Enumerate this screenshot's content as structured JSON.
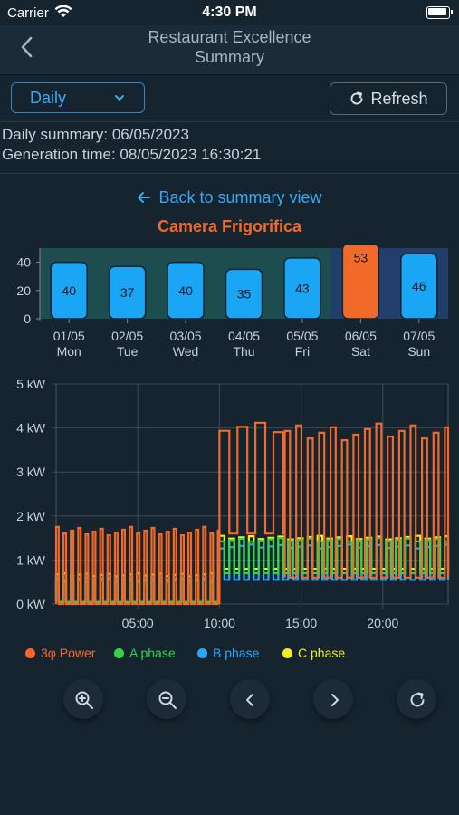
{
  "status_bar": {
    "carrier": "Carrier",
    "time": "4:30 PM"
  },
  "navbar": {
    "title_line1": "Restaurant Excellence",
    "title_line2": "Summary",
    "back_icon": "chevron-left-icon"
  },
  "toolbar": {
    "period_select": "Daily",
    "refresh_label": "Refresh",
    "refresh_icon": "refresh-icon"
  },
  "summary": {
    "daily_summary": "Daily summary: 06/05/2023",
    "generation_time": "Generation time: 08/05/2023 16:30:21"
  },
  "back_link": "Back to summary view",
  "device_name": "Camera Frigorifica",
  "colors": {
    "accent": "#3aa8f0",
    "device": "#f26a2a",
    "power": "#f26a2a",
    "a_phase": "#34d34a",
    "b_phase": "#29a9f3",
    "c_phase": "#f0f020",
    "weekday_bg": "#1e4d4f",
    "weekend_bg": "#213f6a"
  },
  "chart_data": [
    {
      "type": "bar",
      "categories": [
        "01/05 Mon",
        "02/05 Tue",
        "03/05 Wed",
        "04/05 Thu",
        "05/05 Fri",
        "06/05 Sat",
        "07/05 Sun"
      ],
      "category_dates": [
        "01/05",
        "02/05",
        "03/05",
        "04/05",
        "05/05",
        "06/05",
        "07/05"
      ],
      "category_days": [
        "Mon",
        "Tue",
        "Wed",
        "Thu",
        "Fri",
        "Sat",
        "Sun"
      ],
      "values": [
        40,
        37,
        40,
        35,
        43,
        53,
        46
      ],
      "selected_index": 5,
      "ylim": [
        0,
        50
      ],
      "yticks": [
        0,
        20,
        40
      ],
      "grid": false
    },
    {
      "type": "line",
      "x_unit": "hour of day",
      "xlim": [
        0,
        24
      ],
      "xticks": [
        "05:00",
        "10:00",
        "15:00",
        "20:00"
      ],
      "xtick_hours": [
        5,
        10,
        15,
        20
      ],
      "ylim": [
        0,
        5
      ],
      "yticks": [
        "0 kW",
        "1 kW",
        "2 kW",
        "3 kW",
        "4 kW",
        "5 kW"
      ],
      "grid": true,
      "legend_position": "bottom",
      "series": [
        {
          "name": "3φ Power",
          "color": "#f26a2a",
          "segments": [
            {
              "from": 0,
              "to": 10,
              "high": 1.75,
              "low": 0.0,
              "period": 0.45,
              "duty": 0.35
            },
            {
              "from": 10,
              "to": 14,
              "high": 4.15,
              "low": 1.6,
              "period": 1.1,
              "duty": 0.55
            },
            {
              "from": 14,
              "to": 24,
              "high": 4.1,
              "low": 0.6,
              "period": 0.7,
              "duty": 0.45
            }
          ]
        },
        {
          "name": "A phase",
          "color": "#34d34a",
          "segments": [
            {
              "from": 0,
              "to": 10,
              "high": 0.55,
              "low": 0.05,
              "period": 0.45,
              "duty": 0.35
            },
            {
              "from": 10,
              "to": 24,
              "high": 1.5,
              "low": 0.7,
              "period": 0.6,
              "duty": 0.5
            }
          ]
        },
        {
          "name": "B phase",
          "color": "#29a9f3",
          "segments": [
            {
              "from": 0,
              "to": 10,
              "high": 0.6,
              "low": 0.05,
              "period": 0.45,
              "duty": 0.35
            },
            {
              "from": 10,
              "to": 24,
              "high": 1.35,
              "low": 0.55,
              "period": 0.6,
              "duty": 0.5
            }
          ]
        },
        {
          "name": "C phase",
          "color": "#f0f020",
          "segments": [
            {
              "from": 0,
              "to": 10,
              "high": 0.7,
              "low": 0.05,
              "period": 0.45,
              "duty": 0.35
            },
            {
              "from": 10,
              "to": 24,
              "high": 1.55,
              "low": 0.8,
              "period": 0.6,
              "duty": 0.5
            }
          ]
        }
      ]
    }
  ],
  "controls": [
    "zoom-in-icon",
    "zoom-out-icon",
    "chevron-left-icon",
    "chevron-right-icon",
    "refresh-icon"
  ]
}
